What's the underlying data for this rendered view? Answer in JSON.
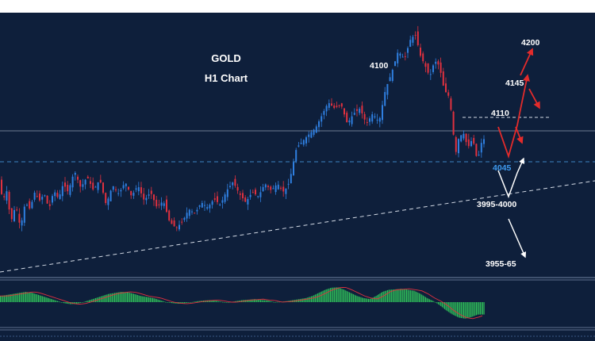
{
  "chart_data": {
    "type": "candlestick",
    "title": "GOLD",
    "subtitle": "H1 Chart",
    "colors": {
      "background": "#0e1f3b",
      "up_candle": "#2f7fe0",
      "down_candle": "#e0313f",
      "level_line": "#cfd8e6",
      "support_line": "#3f86c6",
      "histogram": "#2fbf5a",
      "bullish_arrow": "#e32b2b",
      "bearish_arrow": "#ffffff"
    },
    "levels": [
      {
        "label": "4100",
        "value": 4100,
        "color": "#ffffff"
      },
      {
        "label": "4200",
        "value": 4200,
        "color": "#ffffff"
      },
      {
        "label": "4145",
        "value": 4145,
        "color": "#ffffff"
      },
      {
        "label": "4110",
        "value": 4110,
        "color": "#ffffff"
      },
      {
        "label": "4045",
        "value": 4045,
        "color": "#3f9bf0"
      },
      {
        "label": "3995-4000",
        "value": 3997,
        "color": "#ffffff"
      },
      {
        "label": "3955-65",
        "value": 3960,
        "color": "#ffffff"
      }
    ],
    "ylim": [
      3920,
      4230
    ],
    "price_path": [
      [
        0,
        4040
      ],
      [
        6,
        4008
      ],
      [
        10,
        4025
      ],
      [
        16,
        3985
      ],
      [
        22,
        4005
      ],
      [
        28,
        3978
      ],
      [
        34,
        4008
      ],
      [
        40,
        4000
      ],
      [
        46,
        4020
      ],
      [
        52,
        4010
      ],
      [
        58,
        4018
      ],
      [
        64,
        4000
      ],
      [
        70,
        4022
      ],
      [
        76,
        4012
      ],
      [
        82,
        4030
      ],
      [
        88,
        4020
      ],
      [
        96,
        4045
      ],
      [
        104,
        4025
      ],
      [
        112,
        4038
      ],
      [
        120,
        4022
      ],
      [
        128,
        4035
      ],
      [
        136,
        4005
      ],
      [
        144,
        4028
      ],
      [
        152,
        4018
      ],
      [
        160,
        4032
      ],
      [
        168,
        4015
      ],
      [
        176,
        4028
      ],
      [
        184,
        4010
      ],
      [
        192,
        4020
      ],
      [
        200,
        4002
      ],
      [
        208,
        4010
      ],
      [
        216,
        3985
      ],
      [
        224,
        3978
      ],
      [
        232,
        3985
      ],
      [
        240,
        4000
      ],
      [
        248,
        3995
      ],
      [
        256,
        4008
      ],
      [
        264,
        4002
      ],
      [
        272,
        4012
      ],
      [
        280,
        4005
      ],
      [
        288,
        4022
      ],
      [
        296,
        4032
      ],
      [
        304,
        4018
      ],
      [
        312,
        4008
      ],
      [
        320,
        4020
      ],
      [
        328,
        4015
      ],
      [
        336,
        4030
      ],
      [
        344,
        4022
      ],
      [
        352,
        4030
      ],
      [
        360,
        4020
      ],
      [
        366,
        4030
      ],
      [
        370,
        4045
      ],
      [
        376,
        4072
      ],
      [
        384,
        4080
      ],
      [
        392,
        4088
      ],
      [
        400,
        4095
      ],
      [
        408,
        4110
      ],
      [
        416,
        4125
      ],
      [
        424,
        4118
      ],
      [
        432,
        4123
      ],
      [
        440,
        4100
      ],
      [
        448,
        4112
      ],
      [
        456,
        4118
      ],
      [
        464,
        4100
      ],
      [
        472,
        4112
      ],
      [
        480,
        4102
      ],
      [
        488,
        4140
      ],
      [
        496,
        4160
      ],
      [
        504,
        4185
      ],
      [
        512,
        4176
      ],
      [
        520,
        4200
      ],
      [
        526,
        4204
      ],
      [
        532,
        4180
      ],
      [
        538,
        4168
      ],
      [
        544,
        4155
      ],
      [
        550,
        4174
      ],
      [
        556,
        4168
      ],
      [
        562,
        4140
      ],
      [
        568,
        4132
      ],
      [
        572,
        4108
      ],
      [
        576,
        4062
      ],
      [
        580,
        4082
      ],
      [
        586,
        4090
      ],
      [
        592,
        4072
      ],
      [
        598,
        4083
      ],
      [
        604,
        4056
      ],
      [
        610,
        4082
      ]
    ],
    "histogram_values": [
      0.3,
      0.35,
      0.4,
      0.45,
      0.5,
      0.45,
      0.35,
      0.25,
      0.15,
      0.05,
      -0.05,
      -0.1,
      -0.08,
      0.0,
      0.1,
      0.2,
      0.3,
      0.4,
      0.45,
      0.5,
      0.48,
      0.4,
      0.3,
      0.25,
      0.2,
      0.1,
      0.0,
      -0.05,
      -0.08,
      -0.05,
      0.0,
      0.05,
      0.08,
      0.1,
      0.06,
      0.0,
      0.0,
      0.05,
      0.1,
      0.12,
      0.15,
      0.1,
      0.08,
      0.0,
      0.02,
      0.05,
      0.1,
      0.15,
      0.2,
      0.3,
      0.45,
      0.6,
      0.7,
      0.72,
      0.6,
      0.45,
      0.3,
      0.2,
      0.15,
      0.3,
      0.5,
      0.6,
      0.62,
      0.65,
      0.6,
      0.55,
      0.4,
      0.2,
      0.05,
      -0.15,
      -0.4,
      -0.6,
      -0.75,
      -0.8,
      -0.72,
      -0.6
    ]
  }
}
